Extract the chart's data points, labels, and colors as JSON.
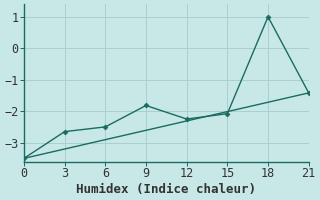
{
  "xlabel": "Humidex (Indice chaleur)",
  "background_color": "#c8e8e8",
  "grid_color": "#a8d0d0",
  "line_color": "#1a6b60",
  "spine_color": "#1a6b60",
  "x_data": [
    0,
    3,
    6,
    9,
    12,
    15,
    18,
    21
  ],
  "y_data": [
    -3.5,
    -2.65,
    -2.5,
    -1.82,
    -2.25,
    -2.08,
    1.0,
    -1.42
  ],
  "trend_x": [
    0,
    21
  ],
  "trend_y": [
    -3.5,
    -1.42
  ],
  "xlim": [
    0,
    21
  ],
  "ylim": [
    -3.6,
    1.4
  ],
  "xticks": [
    0,
    3,
    6,
    9,
    12,
    15,
    18,
    21
  ],
  "yticks": [
    -3,
    -2,
    -1,
    0,
    1
  ],
  "tick_fontsize": 8.5,
  "xlabel_fontsize": 9.0
}
